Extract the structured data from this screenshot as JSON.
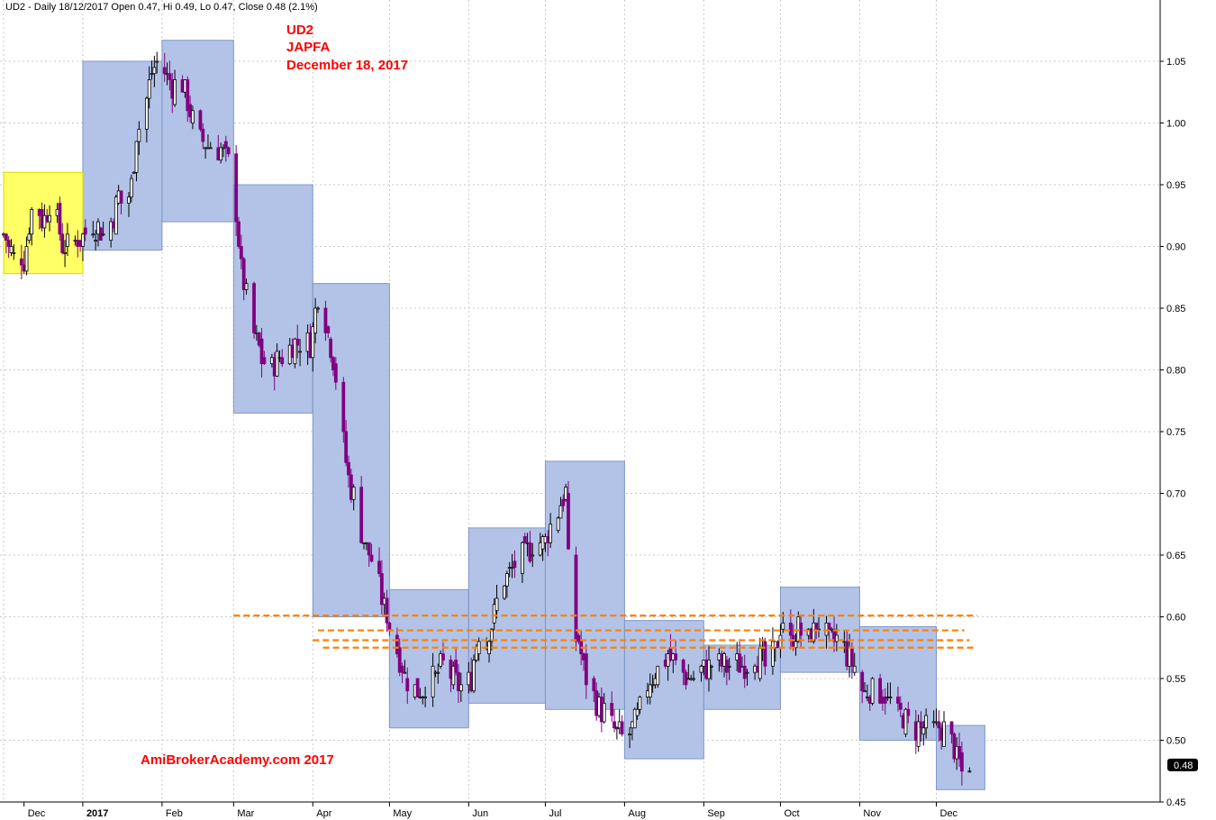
{
  "header": {
    "text": "UD2 - Daily 18/12/2017 Open 0.47, Hi 0.49, Lo 0.47, Close 0.48 (2.1%)"
  },
  "annotations": {
    "ticker": "UD2",
    "company": "JAPFA",
    "date": "December 18, 2017",
    "watermark": "AmiBrokerAcademy.com  2017"
  },
  "colors": {
    "up_candle": "#ffffff",
    "down_candle": "#800080",
    "candle_outline": "#000000",
    "monthly_box": "#aec0e6",
    "highlight_box": "#ffff66",
    "support_line": "#ff8000",
    "grid": "#c8c8c8",
    "annotation_text": "#ff0000"
  },
  "last_price_tag": "0.48",
  "chart_data": {
    "type": "candlestick",
    "title": "UD2 - Daily",
    "ylim": [
      0.45,
      1.08
    ],
    "y_ticks": [
      "1.05",
      "1.00",
      "0.95",
      "0.90",
      "0.85",
      "0.80",
      "0.75",
      "0.70",
      "0.65",
      "0.60",
      "0.55",
      "0.50",
      "0.45"
    ],
    "x_month_labels": [
      {
        "label": "Dec",
        "day": 8
      },
      {
        "label": "2017",
        "day": 31,
        "bold": true
      },
      {
        "label": "Feb",
        "day": 62
      },
      {
        "label": "Mar",
        "day": 90
      },
      {
        "label": "Apr",
        "day": 121
      },
      {
        "label": "May",
        "day": 151
      },
      {
        "label": "Jun",
        "day": 182
      },
      {
        "label": "Jul",
        "day": 212
      },
      {
        "label": "Aug",
        "day": 243
      },
      {
        "label": "Sep",
        "day": 274
      },
      {
        "label": "Oct",
        "day": 304
      },
      {
        "label": "Nov",
        "day": 335
      },
      {
        "label": "Dec",
        "day": 365
      }
    ],
    "month_separators": [
      0,
      31,
      62,
      90,
      121,
      151,
      182,
      212,
      243,
      274,
      304,
      335,
      365
    ],
    "monthly_ranges": [
      {
        "start": 31,
        "end": 62,
        "high": 1.05,
        "low": 0.897,
        "highlight": false
      },
      {
        "start": 62,
        "end": 90,
        "high": 1.067,
        "low": 0.92,
        "highlight": false
      },
      {
        "start": 90,
        "end": 121,
        "high": 0.95,
        "low": 0.765,
        "highlight": false
      },
      {
        "start": 121,
        "end": 151,
        "high": 0.87,
        "low": 0.6,
        "highlight": false
      },
      {
        "start": 151,
        "end": 182,
        "high": 0.622,
        "low": 0.51,
        "highlight": false
      },
      {
        "start": 182,
        "end": 212,
        "high": 0.672,
        "low": 0.53,
        "highlight": false
      },
      {
        "start": 212,
        "end": 243,
        "high": 0.726,
        "low": 0.525,
        "highlight": false
      },
      {
        "start": 243,
        "end": 274,
        "high": 0.597,
        "low": 0.485,
        "highlight": false
      },
      {
        "start": 274,
        "end": 304,
        "high": 0.577,
        "low": 0.525,
        "highlight": false
      },
      {
        "start": 304,
        "end": 335,
        "high": 0.624,
        "low": 0.555,
        "highlight": false
      },
      {
        "start": 335,
        "end": 365,
        "high": 0.592,
        "low": 0.5,
        "highlight": false
      },
      {
        "start": 365,
        "end": 384,
        "high": 0.512,
        "low": 0.46,
        "highlight": false
      },
      {
        "start": 0,
        "end": 31,
        "high": 0.96,
        "low": 0.878,
        "highlight": true
      }
    ],
    "support_lines": [
      {
        "value": 0.601,
        "start": 90,
        "end": 381
      },
      {
        "value": 0.589,
        "start": 123,
        "end": 376
      },
      {
        "value": 0.581,
        "start": 121,
        "end": 378
      },
      {
        "value": 0.575,
        "start": 125,
        "end": 380
      }
    ],
    "ohlc_keypoints": [
      [
        0,
        0.91
      ],
      [
        4,
        0.89
      ],
      [
        8,
        0.89
      ],
      [
        12,
        0.94
      ],
      [
        15,
        0.92
      ],
      [
        19,
        0.94
      ],
      [
        23,
        0.9
      ],
      [
        27,
        0.9
      ],
      [
        31,
        0.91
      ],
      [
        35,
        0.92
      ],
      [
        39,
        0.91
      ],
      [
        42,
        0.92
      ],
      [
        45,
        0.94
      ],
      [
        47,
        0.93
      ],
      [
        50,
        0.95
      ],
      [
        52,
        0.99
      ],
      [
        55,
        1.01
      ],
      [
        58,
        1.04
      ],
      [
        60,
        1.05
      ],
      [
        63,
        1.04
      ],
      [
        66,
        1.03
      ],
      [
        69,
        1.04
      ],
      [
        73,
        1.01
      ],
      [
        76,
        0.99
      ],
      [
        80,
        0.98
      ],
      [
        84,
        0.98
      ],
      [
        88,
        0.97
      ],
      [
        90,
        0.95
      ],
      [
        93,
        0.88
      ],
      [
        96,
        0.85
      ],
      [
        98,
        0.83
      ],
      [
        101,
        0.81
      ],
      [
        104,
        0.8
      ],
      [
        108,
        0.81
      ],
      [
        112,
        0.82
      ],
      [
        116,
        0.82
      ],
      [
        120,
        0.82
      ],
      [
        123,
        0.86
      ],
      [
        126,
        0.84
      ],
      [
        129,
        0.81
      ],
      [
        132,
        0.76
      ],
      [
        135,
        0.71
      ],
      [
        138,
        0.69
      ],
      [
        141,
        0.66
      ],
      [
        145,
        0.64
      ],
      [
        150,
        0.6
      ],
      [
        153,
        0.58
      ],
      [
        156,
        0.56
      ],
      [
        159,
        0.54
      ],
      [
        163,
        0.54
      ],
      [
        168,
        0.55
      ],
      [
        172,
        0.56
      ],
      [
        176,
        0.55
      ],
      [
        180,
        0.54
      ],
      [
        183,
        0.55
      ],
      [
        186,
        0.59
      ],
      [
        189,
        0.58
      ],
      [
        193,
        0.61
      ],
      [
        196,
        0.63
      ],
      [
        200,
        0.64
      ],
      [
        204,
        0.65
      ],
      [
        208,
        0.66
      ],
      [
        212,
        0.66
      ],
      [
        215,
        0.68
      ],
      [
        218,
        0.69
      ],
      [
        220,
        0.7
      ],
      [
        222,
        0.59
      ],
      [
        225,
        0.58
      ],
      [
        228,
        0.55
      ],
      [
        232,
        0.53
      ],
      [
        236,
        0.52
      ],
      [
        239,
        0.51
      ],
      [
        242,
        0.5
      ],
      [
        246,
        0.51
      ],
      [
        250,
        0.53
      ],
      [
        253,
        0.55
      ],
      [
        257,
        0.56
      ],
      [
        260,
        0.57
      ],
      [
        263,
        0.56
      ],
      [
        267,
        0.55
      ],
      [
        271,
        0.55
      ],
      [
        274,
        0.56
      ],
      [
        278,
        0.56
      ],
      [
        282,
        0.56
      ],
      [
        286,
        0.56
      ],
      [
        290,
        0.56
      ],
      [
        294,
        0.57
      ],
      [
        298,
        0.56
      ],
      [
        302,
        0.57
      ],
      [
        305,
        0.6
      ],
      [
        308,
        0.58
      ],
      [
        311,
        0.59
      ],
      [
        314,
        0.58
      ],
      [
        317,
        0.59
      ],
      [
        320,
        0.6
      ],
      [
        323,
        0.58
      ],
      [
        327,
        0.58
      ],
      [
        330,
        0.57
      ],
      [
        333,
        0.56
      ],
      [
        336,
        0.54
      ],
      [
        339,
        0.54
      ],
      [
        343,
        0.54
      ],
      [
        347,
        0.53
      ],
      [
        351,
        0.52
      ],
      [
        355,
        0.51
      ],
      [
        359,
        0.51
      ],
      [
        363,
        0.51
      ],
      [
        367,
        0.51
      ],
      [
        371,
        0.5
      ],
      [
        374,
        0.48
      ],
      [
        376,
        0.47
      ],
      [
        378,
        0.48
      ]
    ]
  }
}
